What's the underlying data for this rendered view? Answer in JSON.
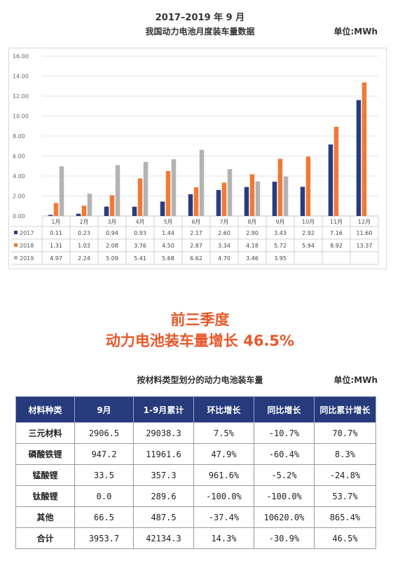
{
  "header": {
    "title": "2017–2019 年 9 月",
    "subtitle": "我国动力电池月度装车量数据",
    "unit": "单位:MWh"
  },
  "chart_data": {
    "type": "bar",
    "categories": [
      "1月",
      "2月",
      "3月",
      "4月",
      "5月",
      "6月",
      "7月",
      "8月",
      "9月",
      "10月",
      "11月",
      "12月"
    ],
    "ylim": [
      0,
      16
    ],
    "y_ticks": [
      "0.00",
      "2.00",
      "4.00",
      "6.00",
      "8.00",
      "10.00",
      "12.00",
      "14.00",
      "16.00"
    ],
    "series": [
      {
        "name": "2017",
        "color": "#2b3b80",
        "values": [
          0.11,
          0.23,
          0.94,
          0.93,
          1.44,
          2.17,
          2.6,
          2.9,
          3.43,
          2.92,
          7.16,
          11.6
        ],
        "labels": [
          "0.11",
          "0.23",
          "0.94",
          "0.93",
          "1.44",
          "2.17",
          "2.60",
          "2.90",
          "3.43",
          "2.92",
          "7.16",
          "11.60"
        ]
      },
      {
        "name": "2018",
        "color": "#f07a35",
        "values": [
          1.31,
          1.03,
          2.08,
          3.76,
          4.5,
          2.87,
          3.34,
          4.18,
          5.72,
          5.94,
          8.92,
          13.37
        ],
        "labels": [
          "1.31",
          "1.03",
          "2.08",
          "3.76",
          "4.50",
          "2.87",
          "3.34",
          "4.18",
          "5.72",
          "5.94",
          "8.92",
          "13.37"
        ]
      },
      {
        "name": "2019",
        "color": "#b3b3b3",
        "values": [
          4.97,
          2.24,
          5.09,
          5.41,
          5.68,
          6.62,
          4.7,
          3.46,
          3.95,
          null,
          null,
          null
        ],
        "labels": [
          "4.97",
          "2.24",
          "5.09",
          "5.41",
          "5.68",
          "6.62",
          "4.70",
          "3.46",
          "3.95",
          "",
          "",
          ""
        ]
      }
    ],
    "grid": true,
    "legend": "data-table-below"
  },
  "headline": {
    "line1": "前三季度",
    "line2": "动力电池装车量增长 46.5%"
  },
  "table": {
    "title": "按材料类型划分的动力电池装车量",
    "unit": "单位:MWh",
    "header": [
      "材料种类",
      "9月",
      "1-9月累计",
      "环比增长",
      "同比增长",
      "同比累计增长"
    ],
    "rows": [
      [
        "三元材料",
        "2906.5",
        "29038.3",
        "7.5%",
        "-10.7%",
        "70.7%"
      ],
      [
        "磷酸铁锂",
        "947.2",
        "11961.6",
        "47.9%",
        "-60.4%",
        "8.3%"
      ],
      [
        "锰酸锂",
        "33.5",
        "357.3",
        "961.6%",
        "-5.2%",
        "-24.8%"
      ],
      [
        "钛酸锂",
        "0.0",
        "289.6",
        "-100.0%",
        "-100.0%",
        "53.7%"
      ],
      [
        "其他",
        "66.5",
        "487.5",
        "-37.4%",
        "10620.0%",
        "865.4%"
      ],
      [
        "合计",
        "3953.7",
        "42134.3",
        "14.3%",
        "-30.9%",
        "46.5%"
      ]
    ]
  }
}
